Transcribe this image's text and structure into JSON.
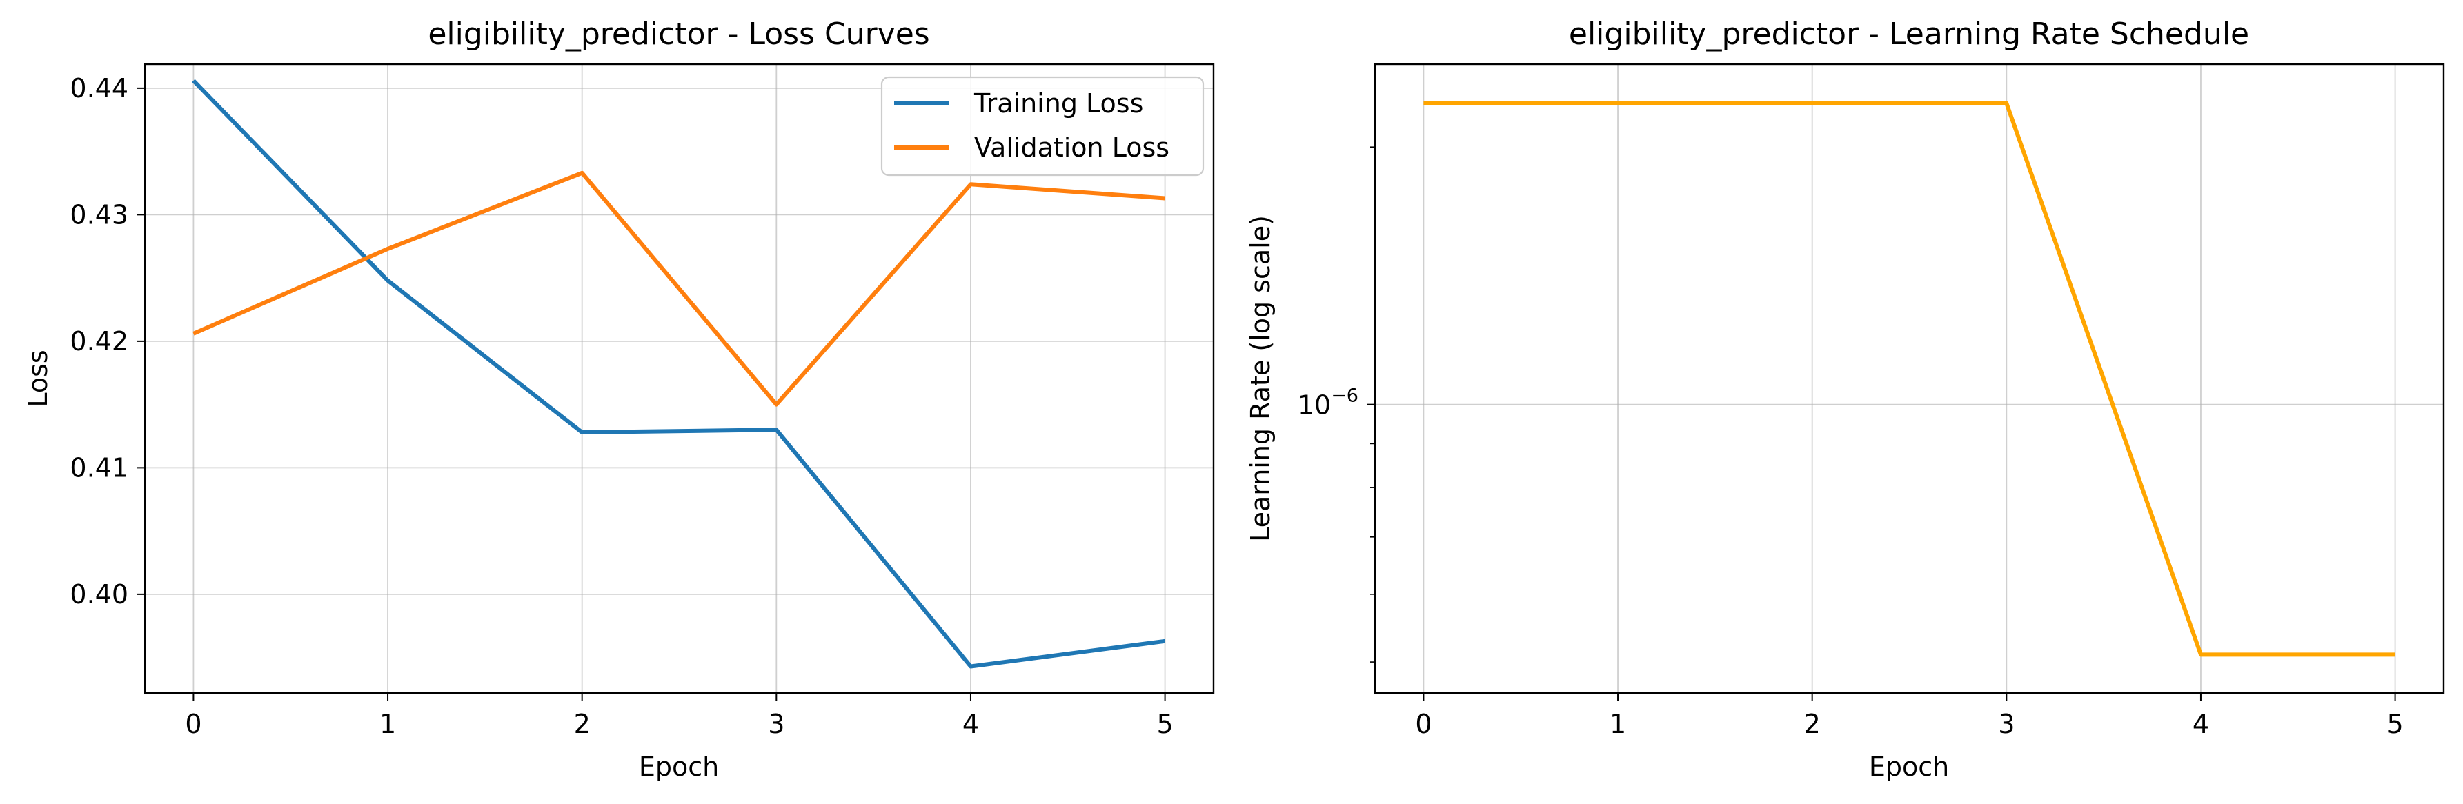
{
  "chart_data": [
    {
      "type": "line",
      "title": "eligibility_predictor - Loss Curves",
      "xlabel": "Epoch",
      "ylabel": "Loss",
      "x": [
        0,
        1,
        2,
        3,
        4,
        5
      ],
      "xlim": [
        -0.25,
        5.25
      ],
      "ylim": [
        0.3922,
        0.4419
      ],
      "x_ticks": [
        "0",
        "1",
        "2",
        "3",
        "4",
        "5"
      ],
      "y_ticks": [
        {
          "value": 0.4,
          "label": "0.40"
        },
        {
          "value": 0.41,
          "label": "0.41"
        },
        {
          "value": 0.42,
          "label": "0.42"
        },
        {
          "value": 0.43,
          "label": "0.43"
        },
        {
          "value": 0.44,
          "label": "0.44"
        }
      ],
      "grid": true,
      "legend": "upper-right",
      "series": [
        {
          "name": "Training Loss",
          "color": "#1f77b4",
          "values": [
            0.4406,
            0.4248,
            0.4128,
            0.413,
            0.3943,
            0.3963
          ]
        },
        {
          "name": "Validation Loss",
          "color": "#ff7f0e",
          "values": [
            0.4206,
            0.4273,
            0.4333,
            0.415,
            0.4324,
            0.4313
          ]
        }
      ]
    },
    {
      "type": "line",
      "title": "eligibility_predictor - Learning Rate Schedule",
      "xlabel": "Epoch",
      "ylabel": "Learning Rate (log scale)",
      "yscale": "log",
      "x": [
        0,
        1,
        2,
        3,
        4,
        5
      ],
      "xlim": [
        -0.25,
        5.25
      ],
      "ylim": [
        4.6e-07,
        2.5e-06
      ],
      "x_ticks": [
        "0",
        "1",
        "2",
        "3",
        "4",
        "5"
      ],
      "y_major_ticks": [
        {
          "value": 1e-06,
          "base": "10",
          "exp": "−6"
        }
      ],
      "y_minor_ticks": [
        5e-07,
        6e-07,
        7e-07,
        8e-07,
        9e-07,
        2e-06
      ],
      "grid": true,
      "series": [
        {
          "color": "#ffa500",
          "values": [
            2.25e-06,
            2.25e-06,
            2.25e-06,
            2.25e-06,
            5.1e-07,
            5.1e-07
          ]
        }
      ]
    }
  ]
}
